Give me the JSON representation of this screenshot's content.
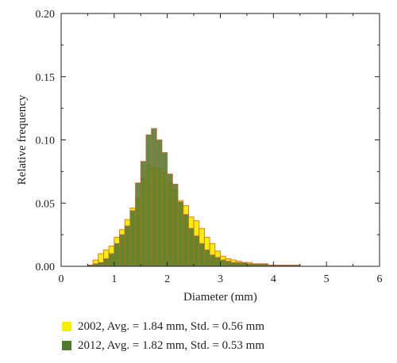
{
  "chart_data": {
    "type": "bar",
    "xlabel": "Diameter (mm)",
    "ylabel": "Relative frequency",
    "xlim": [
      0,
      6
    ],
    "ylim": [
      0,
      0.2
    ],
    "xticks": [
      "0",
      "1",
      "2",
      "3",
      "4",
      "5",
      "6"
    ],
    "yticks": [
      "0.00",
      "0.05",
      "0.10",
      "0.15",
      "0.20"
    ],
    "bin_width": 0.1,
    "grid": false,
    "legend_position": "bottom",
    "series": [
      {
        "name": "2002, Avg. = 1.84 mm, Std. = 0.56 mm",
        "color": "#f5ee00",
        "bin_start": [
          0.5,
          0.6,
          0.7,
          0.8,
          0.9,
          1.0,
          1.1,
          1.2,
          1.3,
          1.4,
          1.5,
          1.6,
          1.7,
          1.8,
          1.9,
          2.0,
          2.1,
          2.2,
          2.3,
          2.4,
          2.5,
          2.6,
          2.7,
          2.8,
          2.9,
          3.0,
          3.1,
          3.2,
          3.3,
          3.4,
          3.5,
          3.6,
          3.7,
          3.8,
          3.9,
          4.0,
          4.1,
          4.2
        ],
        "values": [
          0.001,
          0.005,
          0.01,
          0.013,
          0.016,
          0.023,
          0.029,
          0.037,
          0.046,
          0.054,
          0.07,
          0.08,
          0.078,
          0.077,
          0.074,
          0.066,
          0.06,
          0.052,
          0.048,
          0.039,
          0.036,
          0.03,
          0.023,
          0.018,
          0.012,
          0.008,
          0.006,
          0.005,
          0.004,
          0.003,
          0.003,
          0.002,
          0.002,
          0.002,
          0.001,
          0.001,
          0.001,
          0.001
        ]
      },
      {
        "name": "2012, Avg. = 1.82 mm, Std. = 0.53 mm",
        "color": "#4f7a2e",
        "bin_start": [
          0.5,
          0.6,
          0.7,
          0.8,
          0.9,
          1.0,
          1.1,
          1.2,
          1.3,
          1.4,
          1.5,
          1.6,
          1.7,
          1.8,
          1.9,
          2.0,
          2.1,
          2.2,
          2.3,
          2.4,
          2.5,
          2.6,
          2.7,
          2.8,
          2.9,
          3.0,
          3.1,
          3.2,
          3.3,
          3.4,
          3.5,
          3.6,
          3.7,
          3.8,
          3.9,
          4.0,
          4.1,
          4.2,
          4.3,
          4.4
        ],
        "values": [
          0.001,
          0.002,
          0.003,
          0.006,
          0.01,
          0.018,
          0.025,
          0.032,
          0.044,
          0.066,
          0.083,
          0.104,
          0.109,
          0.1,
          0.09,
          0.073,
          0.065,
          0.051,
          0.041,
          0.03,
          0.024,
          0.018,
          0.013,
          0.009,
          0.007,
          0.005,
          0.004,
          0.003,
          0.003,
          0.003,
          0.002,
          0.002,
          0.002,
          0.002,
          0.001,
          0.001,
          0.001,
          0.001,
          0.001,
          0.001
        ]
      }
    ]
  }
}
